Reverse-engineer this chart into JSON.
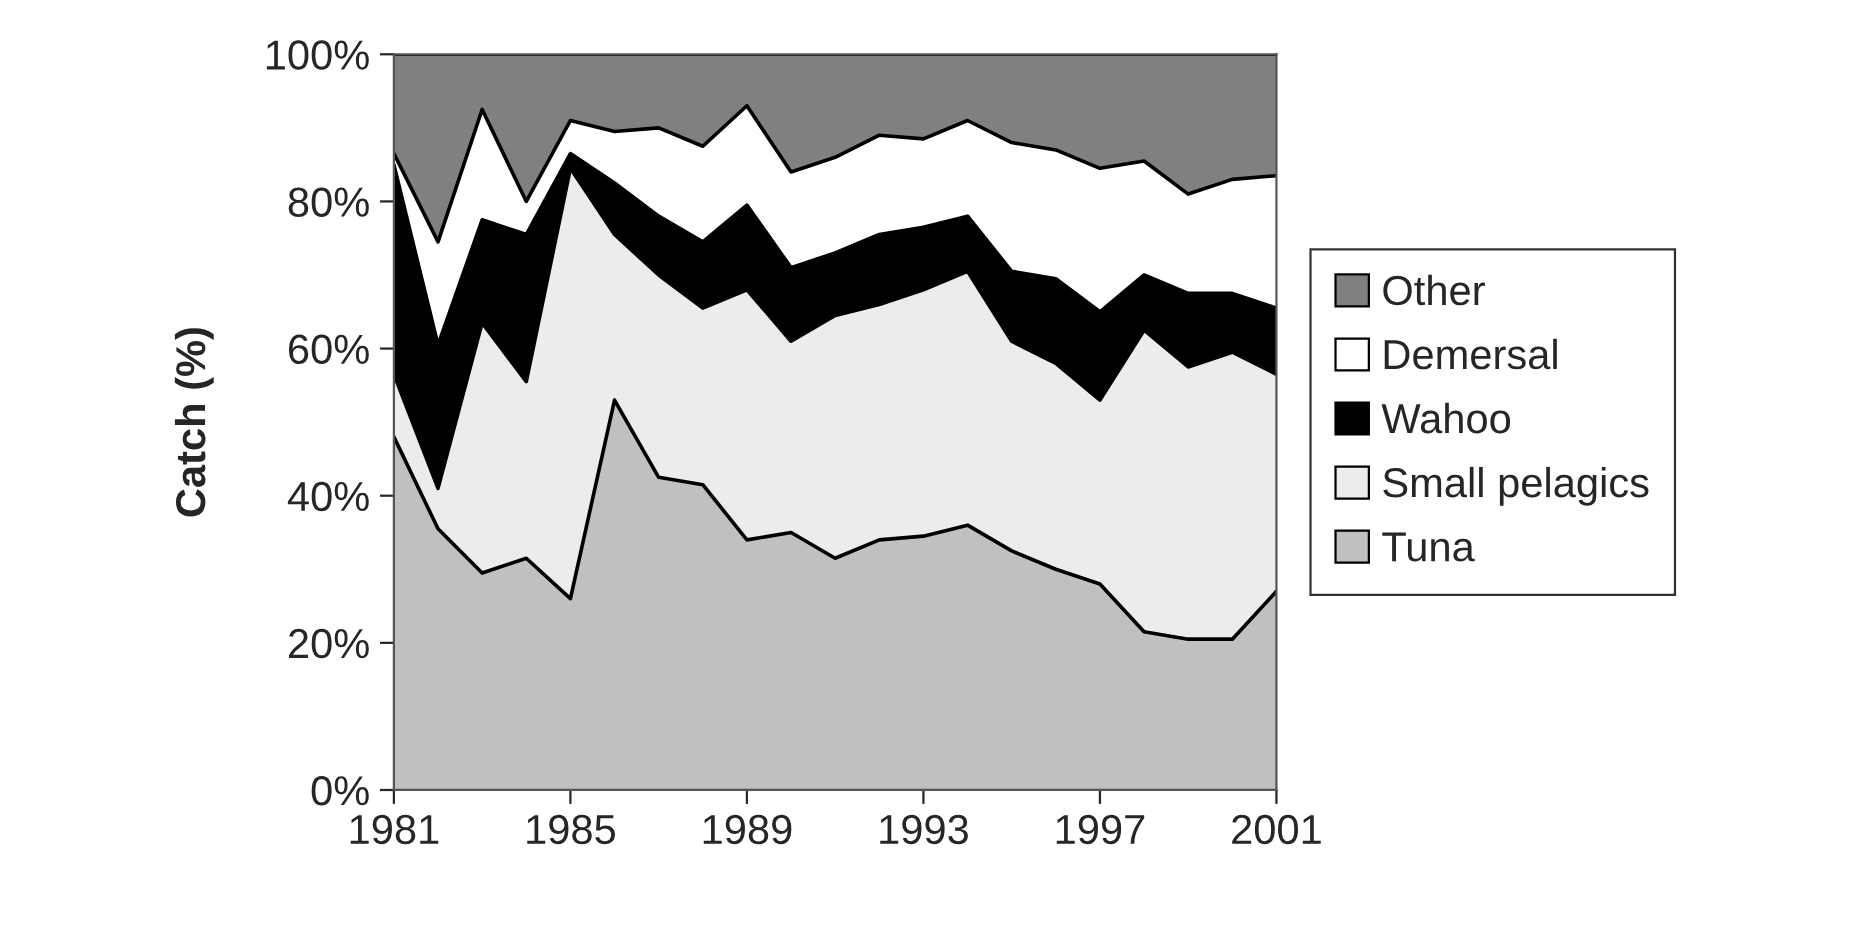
{
  "chart_data": {
    "type": "area",
    "stacked": true,
    "ylabel": "Catch (%)",
    "x": [
      1981,
      1982,
      1983,
      1984,
      1985,
      1986,
      1987,
      1988,
      1989,
      1990,
      1991,
      1992,
      1993,
      1994,
      1995,
      1996,
      1997,
      1998,
      1999,
      2000,
      2001
    ],
    "xlim": [
      1981,
      2001
    ],
    "xticks": [
      1981,
      1985,
      1989,
      1993,
      1997,
      2001
    ],
    "ylim": [
      0,
      100
    ],
    "yticks": [
      {
        "value": 0,
        "label": "0%"
      },
      {
        "value": 20,
        "label": "20%"
      },
      {
        "value": 40,
        "label": "40%"
      },
      {
        "value": 60,
        "label": "60%"
      },
      {
        "value": 80,
        "label": "80%"
      },
      {
        "value": 100,
        "label": "100%"
      }
    ],
    "legend": "right",
    "series": [
      {
        "name": "Tuna",
        "color": "#c0c0c0",
        "values": [
          48,
          35.5,
          29.5,
          31.5,
          26,
          53,
          42.5,
          41.5,
          34,
          35,
          31.5,
          34,
          34.5,
          36,
          32.5,
          30,
          28,
          21.5,
          20.5,
          20.5,
          27
        ]
      },
      {
        "name": "Small pelagics",
        "color": "#ececec",
        "values": [
          8.5,
          5.5,
          34,
          24,
          58.5,
          22.5,
          27.5,
          24,
          34,
          26,
          33,
          32,
          33.5,
          34.5,
          28.5,
          28,
          25,
          41,
          37,
          39,
          29.5
        ]
      },
      {
        "name": "Wahoo",
        "color": "#000000",
        "values": [
          28.5,
          19.5,
          14,
          20,
          2,
          7,
          8,
          9,
          11.5,
          10,
          8.5,
          9.5,
          8.5,
          7.5,
          9.5,
          11.5,
          12,
          7.5,
          10,
          8,
          9
        ]
      },
      {
        "name": "Demersal",
        "color": "#ffffff",
        "values": [
          1.5,
          14,
          15,
          4.5,
          4.5,
          7,
          12,
          13,
          13.5,
          13,
          13,
          13.5,
          12,
          13,
          17.5,
          17.5,
          19.5,
          15.5,
          13.5,
          15.5,
          18
        ]
      },
      {
        "name": "Other",
        "color": "#808080",
        "values": [
          13.5,
          25.5,
          7.5,
          20,
          9,
          10.5,
          10,
          12.5,
          7,
          16,
          14,
          11,
          11.5,
          9,
          12,
          13,
          15.5,
          14.5,
          19,
          17,
          16.5
        ]
      }
    ]
  }
}
